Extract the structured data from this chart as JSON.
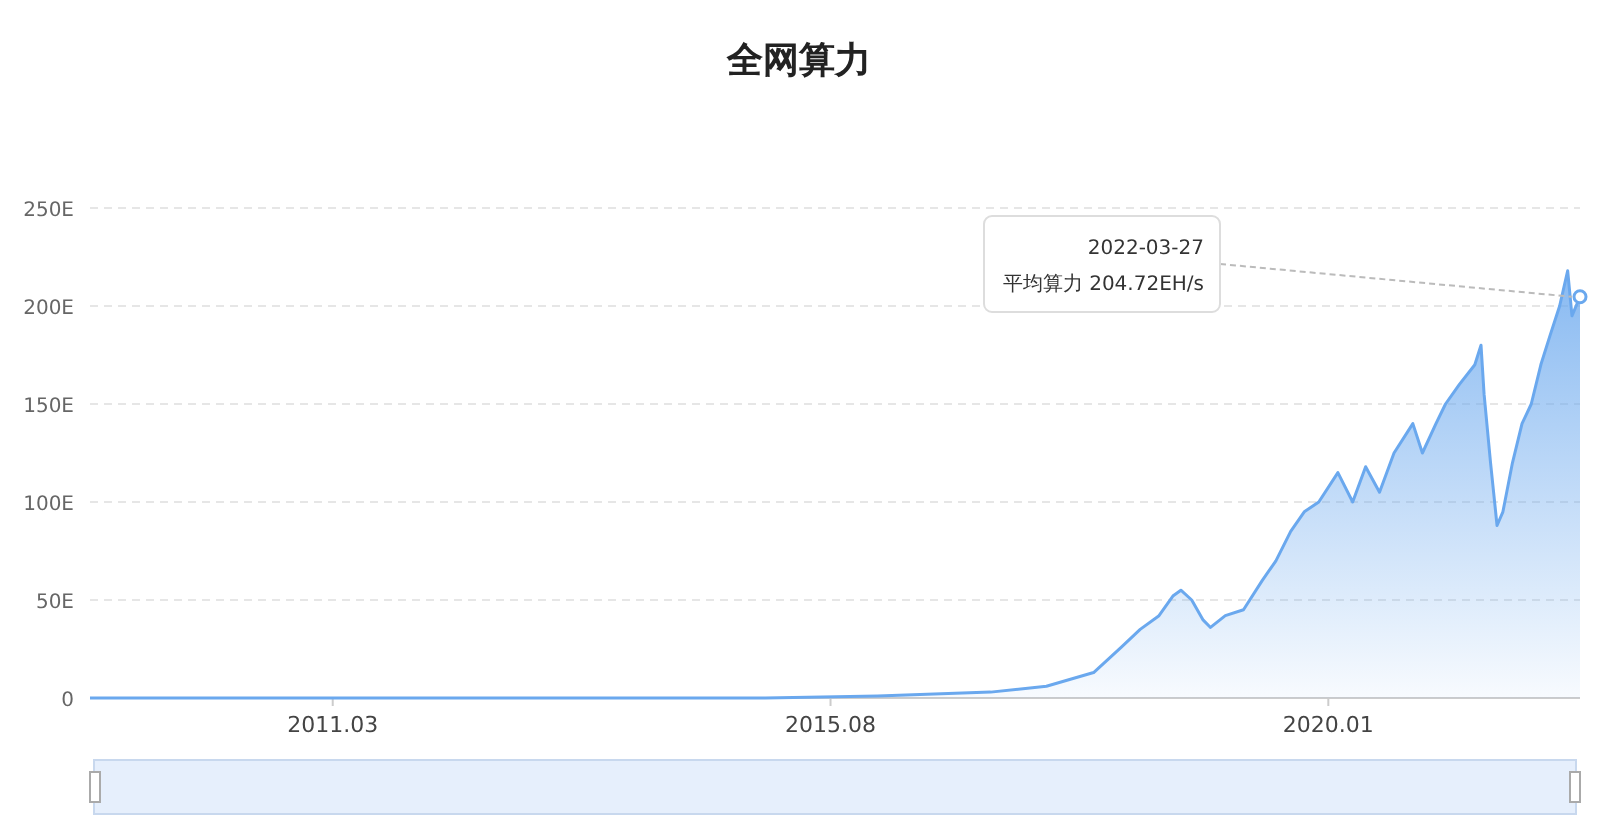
{
  "chart_data": {
    "type": "area",
    "title": "全网算力",
    "x": [
      "2009-01-03",
      "2011-01-01",
      "2013-01-01",
      "2014-01-01",
      "2015-01-01",
      "2016-01-01",
      "2017-01-01",
      "2017-07-01",
      "2017-12-01",
      "2018-03-01",
      "2018-05-01",
      "2018-07-01",
      "2018-08-15",
      "2018-09-10",
      "2018-10-15",
      "2018-11-20",
      "2018-12-15",
      "2019-02-01",
      "2019-04-01",
      "2019-06-01",
      "2019-07-15",
      "2019-09-01",
      "2019-10-15",
      "2019-12-01",
      "2020-02-01",
      "2020-03-20",
      "2020-05-01",
      "2020-06-15",
      "2020-08-01",
      "2020-10-01",
      "2020-11-01",
      "2020-12-15",
      "2021-01-15",
      "2021-03-01",
      "2021-04-20",
      "2021-05-10",
      "2021-05-20",
      "2021-06-10",
      "2021-07-01",
      "2021-07-20",
      "2021-08-20",
      "2021-09-20",
      "2021-10-20",
      "2021-11-20",
      "2021-12-20",
      "2022-01-20",
      "2022-02-15",
      "2022-03-01",
      "2022-03-27"
    ],
    "series": [
      {
        "color": "#6aa8ee",
        "values": [
          0,
          0,
          0,
          0,
          0,
          1,
          3,
          6,
          13,
          26,
          35,
          42,
          52,
          55,
          50,
          40,
          36,
          42,
          45,
          60,
          70,
          85,
          95,
          100,
          115,
          100,
          118,
          105,
          125,
          140,
          125,
          140,
          150,
          160,
          170,
          180,
          155,
          120,
          88,
          95,
          120,
          140,
          150,
          170,
          185,
          200,
          218,
          195,
          204.72
        ]
      }
    ],
    "xlim": [
      "2009-01-03",
      "2022-03-27"
    ],
    "xticks": [
      {
        "value": "2011-03-01",
        "label": "2011.03"
      },
      {
        "value": "2015-08-01",
        "label": "2015.08"
      },
      {
        "value": "2020-01-01",
        "label": "2020.01"
      }
    ],
    "ylim": [
      0,
      250
    ],
    "yticks": [
      0,
      {
        "value": 50,
        "label": "50E"
      },
      {
        "value": 100,
        "label": "100E"
      },
      {
        "value": 150,
        "label": "150E"
      },
      {
        "value": 200,
        "label": "200E"
      },
      {
        "value": 250,
        "label": "250E"
      }
    ],
    "grid": "y",
    "annotations": [
      {
        "text": "2022-03-27\n平均算力 204.72EH/s",
        "x": "2022-03-27",
        "y": 204.72
      }
    ]
  }
}
